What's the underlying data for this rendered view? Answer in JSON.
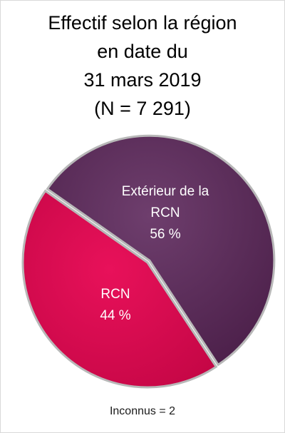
{
  "chart_data": {
    "type": "pie",
    "title_lines": [
      "Effectif selon la région",
      "en date du",
      "31 mars 2019",
      "(N = 7 291)"
    ],
    "slices": [
      {
        "label_lines": [
          "Extérieur de la",
          "RCN"
        ],
        "value_text": "56 %",
        "value": 56,
        "color": "#5a2a58"
      },
      {
        "label_lines": [
          "RCN"
        ],
        "value_text": "44 %",
        "value": 44,
        "color": "#d8084d"
      }
    ],
    "footnote": "Inconnus = 2"
  }
}
